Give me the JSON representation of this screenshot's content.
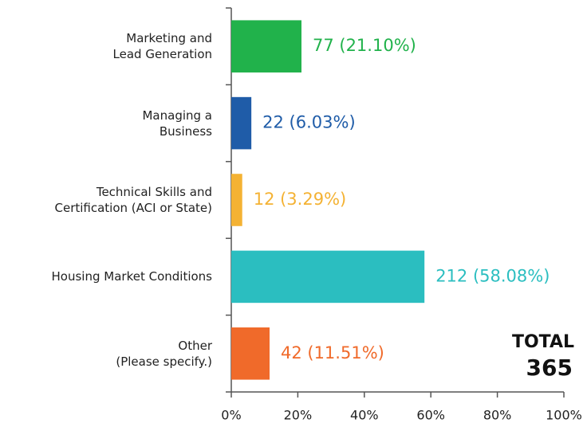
{
  "chart_data": {
    "type": "bar",
    "orientation": "horizontal",
    "categories": [
      "Marketing and\nLead Generation",
      "Managing a\nBusiness",
      "Technical Skills and\nCertification (ACI or State)",
      "Housing Market Conditions",
      "Other\n(Please specify.)"
    ],
    "values": [
      21.1,
      6.03,
      3.29,
      58.08,
      11.51
    ],
    "value_labels": [
      "77 (21.10%)",
      "22 (6.03%)",
      "12 (3.29%)",
      "212 (58.08%)",
      "42 (11.51%)"
    ],
    "colors": [
      "#21b24b",
      "#1f5ca8",
      "#f4b233",
      "#2bbec0",
      "#f06a2a"
    ],
    "xlim": [
      0,
      100
    ],
    "xticks": [
      {
        "value": 0,
        "label": "0%"
      },
      {
        "value": 20,
        "label": "20%"
      },
      {
        "value": 40,
        "label": "40%"
      },
      {
        "value": 60,
        "label": "60%"
      },
      {
        "value": 80,
        "label": "80%"
      },
      {
        "value": 100,
        "label": "100%"
      }
    ],
    "annotations": {
      "total_label": "TOTAL",
      "total": 365
    }
  }
}
